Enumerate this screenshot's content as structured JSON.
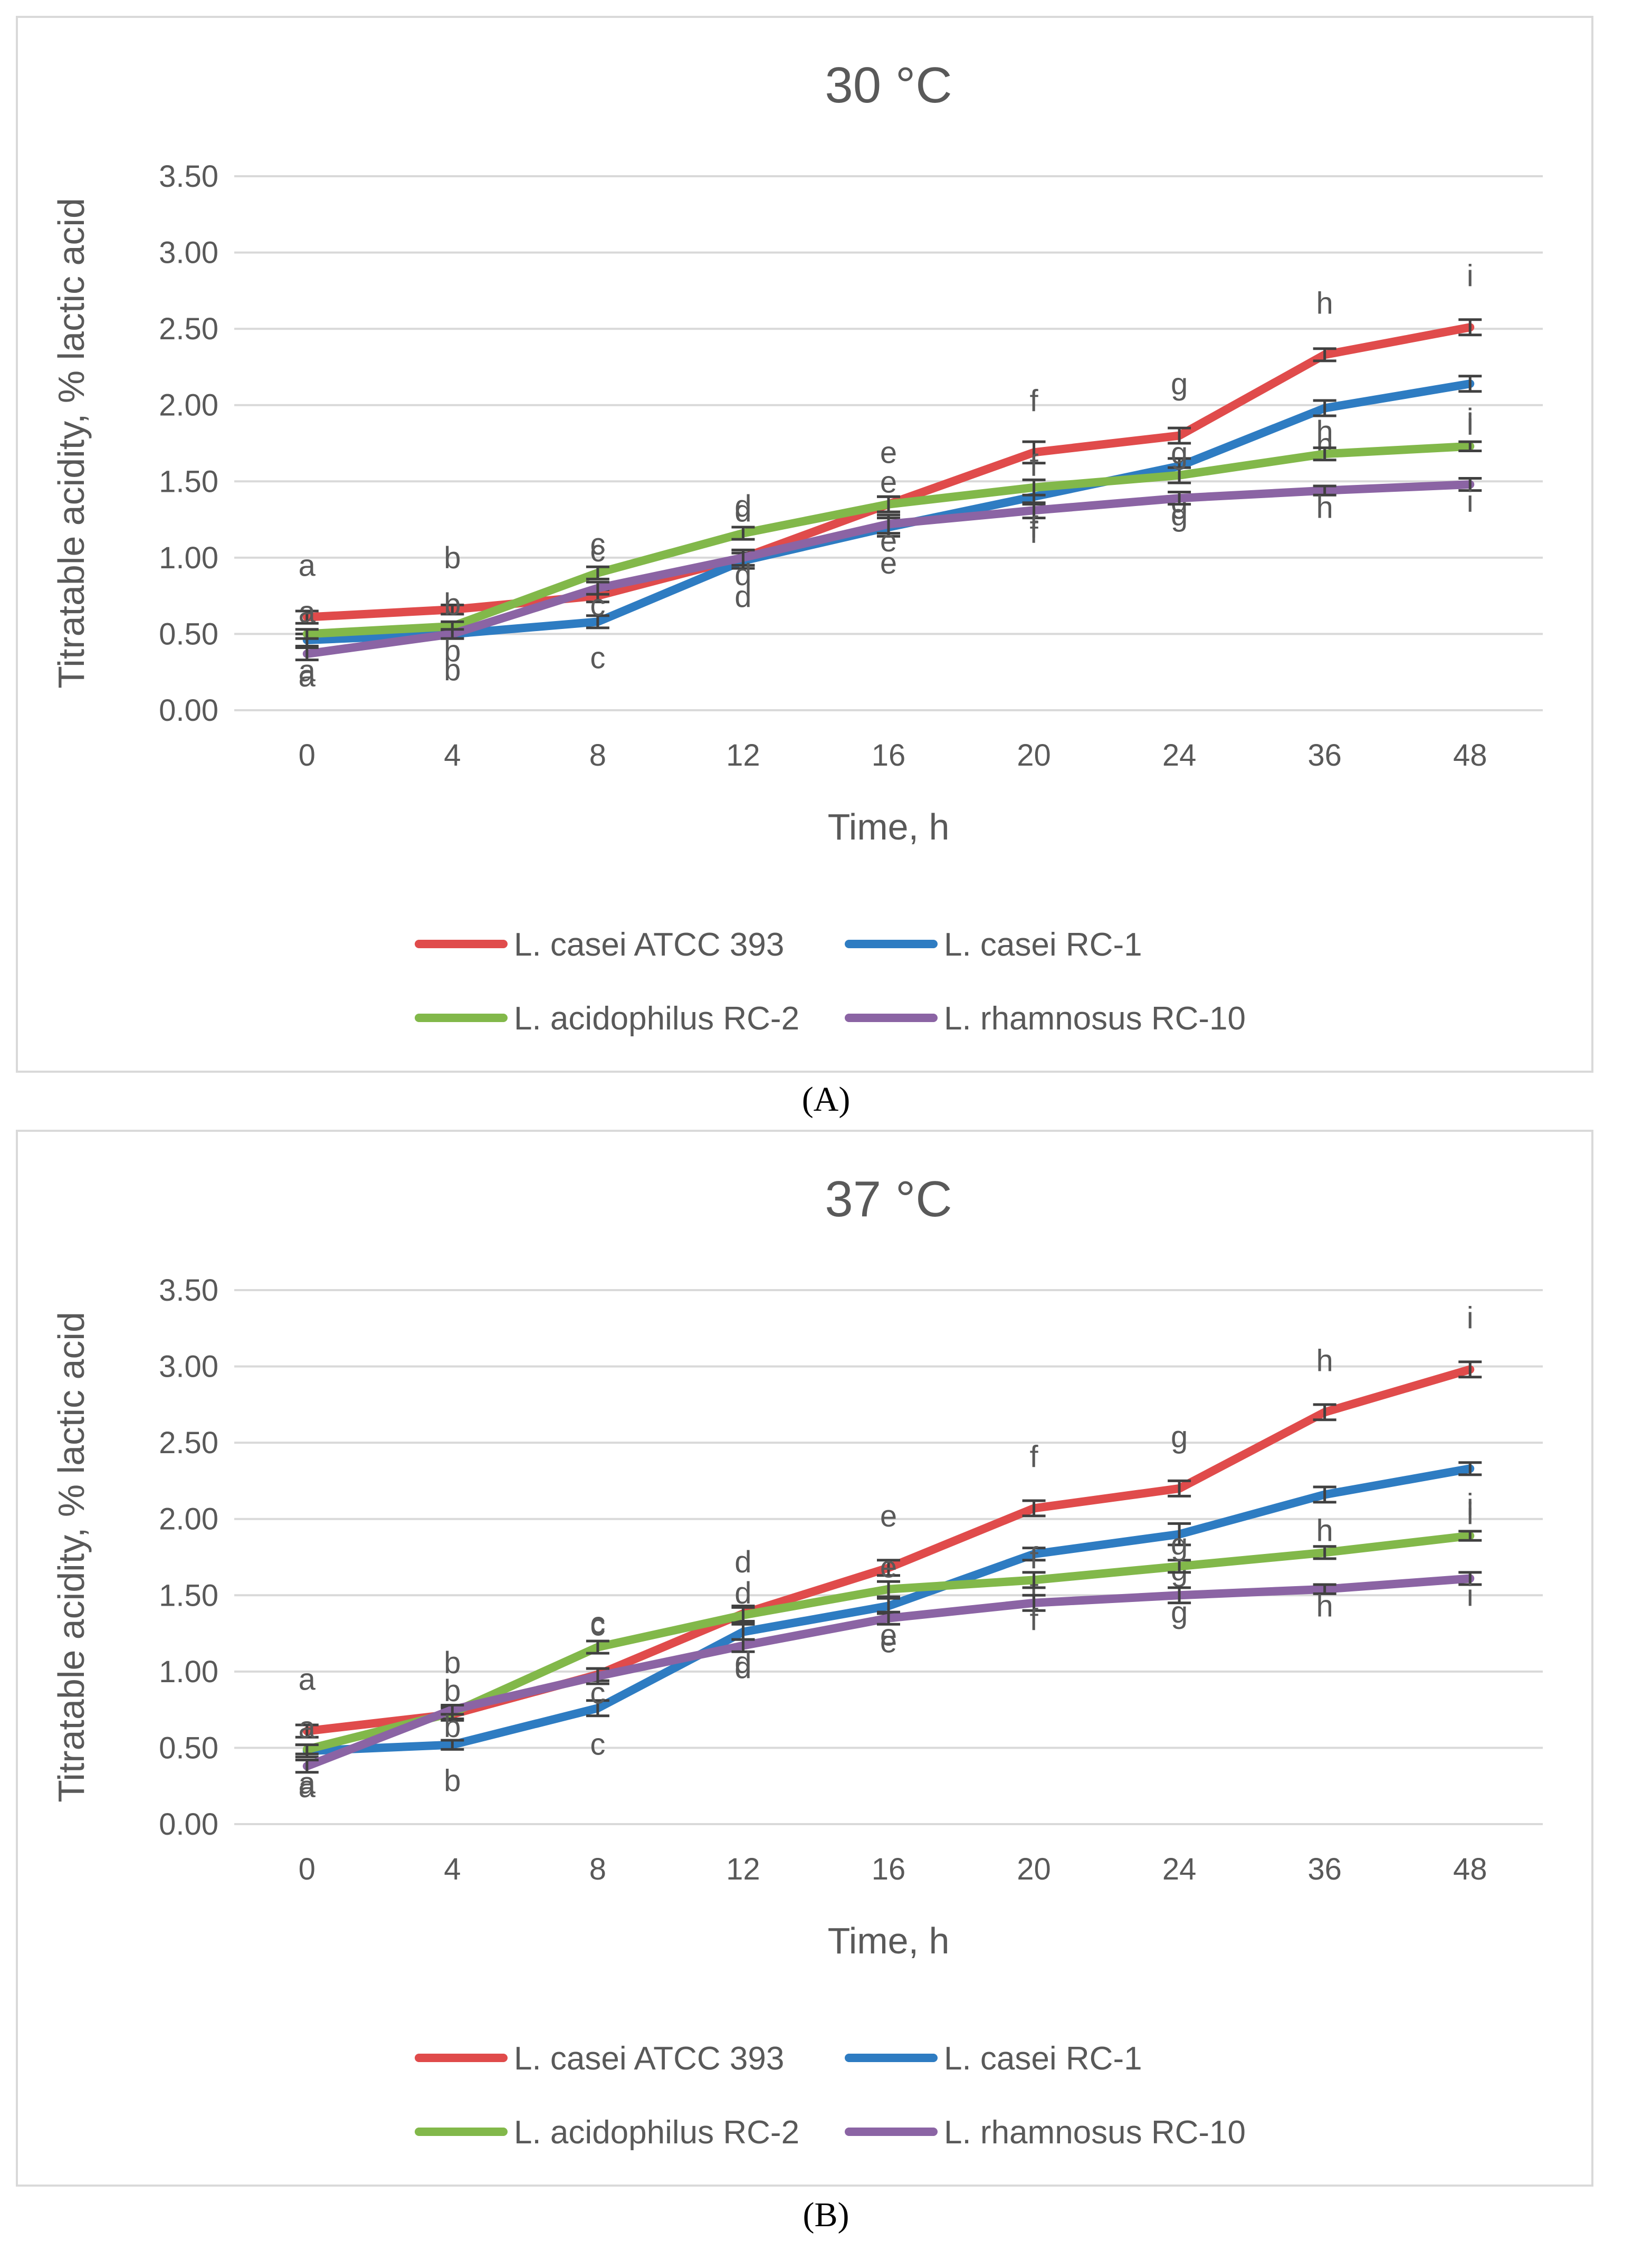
{
  "chart_data": [
    {
      "type": "line",
      "title": "30 °C",
      "xlabel": "Time, h",
      "ylabel": "Titratable acidity, % lactic acid",
      "categories": [
        "0",
        "4",
        "8",
        "12",
        "16",
        "20",
        "24",
        "36",
        "48"
      ],
      "ylim": [
        0,
        3.5
      ],
      "yticks": [
        "0.00",
        "0.50",
        "1.00",
        "1.50",
        "2.00",
        "2.50",
        "3.00",
        "3.50"
      ],
      "grid": true,
      "legend_position": "bottom",
      "series": [
        {
          "name": "L. casei ATCC 393",
          "color": "#e04b4b",
          "values": [
            0.61,
            0.66,
            0.75,
            1.0,
            1.35,
            1.69,
            1.8,
            2.33,
            2.51
          ],
          "errors": [
            0.04,
            0.03,
            0.04,
            0.05,
            0.05,
            0.07,
            0.05,
            0.04,
            0.05
          ],
          "letters": [
            "a",
            "b",
            "c",
            "d",
            "e",
            "f",
            "g",
            "h",
            "i"
          ]
        },
        {
          "name": "L. casei RC-1",
          "color": "#2e7cc2",
          "values": [
            0.46,
            0.5,
            0.58,
            0.98,
            1.2,
            1.4,
            1.6,
            1.98,
            2.14
          ],
          "errors": [
            0.04,
            0.03,
            0.04,
            0.05,
            0.06,
            0.05,
            0.05,
            0.05,
            0.05
          ],
          "letters": [
            "a",
            "b",
            "c",
            "d",
            "e",
            "f",
            "g",
            "h",
            "i"
          ]
        },
        {
          "name": "L. acidophilus RC-2",
          "color": "#82b84a",
          "values": [
            0.5,
            0.55,
            0.9,
            1.16,
            1.35,
            1.46,
            1.54,
            1.68,
            1.73
          ],
          "errors": [
            0.03,
            0.03,
            0.04,
            0.04,
            0.05,
            0.05,
            0.05,
            0.04,
            0.03
          ],
          "letters": [
            "a",
            "b",
            "c",
            "d",
            "e",
            "f",
            "g",
            "h",
            "i"
          ]
        },
        {
          "name": "L. rhamnosus RC-10",
          "color": "#8b64a4",
          "values": [
            0.37,
            0.5,
            0.8,
            1.0,
            1.22,
            1.31,
            1.39,
            1.44,
            1.48
          ],
          "errors": [
            0.04,
            0.03,
            0.04,
            0.05,
            0.06,
            0.05,
            0.04,
            0.03,
            0.04
          ],
          "letters": [
            "a",
            "b",
            "c",
            "d",
            "e",
            "f",
            "g",
            "h",
            "i"
          ]
        }
      ]
    },
    {
      "type": "line",
      "title": "37 °C",
      "xlabel": "Time, h",
      "ylabel": "Titratable acidity, % lactic acid",
      "categories": [
        "0",
        "4",
        "8",
        "12",
        "16",
        "20",
        "24",
        "36",
        "48"
      ],
      "ylim": [
        0,
        3.5
      ],
      "yticks": [
        "0.00",
        "0.50",
        "1.00",
        "1.50",
        "2.00",
        "2.50",
        "3.00",
        "3.50"
      ],
      "grid": true,
      "legend_position": "bottom",
      "series": [
        {
          "name": "L. casei ATCC 393",
          "color": "#e04b4b",
          "values": [
            0.61,
            0.72,
            0.98,
            1.38,
            1.68,
            2.07,
            2.2,
            2.7,
            2.98
          ],
          "errors": [
            0.04,
            0.04,
            0.04,
            0.05,
            0.05,
            0.05,
            0.05,
            0.05,
            0.05
          ],
          "letters": [
            "a",
            "b",
            "c",
            "d",
            "e",
            "f",
            "g",
            "h",
            "i"
          ]
        },
        {
          "name": "L. casei RC-1",
          "color": "#2e7cc2",
          "values": [
            0.48,
            0.52,
            0.76,
            1.26,
            1.43,
            1.77,
            1.9,
            2.16,
            2.33
          ],
          "errors": [
            0.04,
            0.03,
            0.05,
            0.05,
            0.05,
            0.04,
            0.07,
            0.05,
            0.04
          ],
          "letters": [
            "a",
            "b",
            "c",
            "d",
            "e",
            "f",
            "g",
            "h",
            "i"
          ]
        },
        {
          "name": "L. acidophilus RC-2",
          "color": "#82b84a",
          "values": [
            0.49,
            0.73,
            1.16,
            1.37,
            1.54,
            1.6,
            1.69,
            1.78,
            1.89
          ],
          "errors": [
            0.03,
            0.04,
            0.04,
            0.05,
            0.05,
            0.05,
            0.04,
            0.04,
            0.03
          ],
          "letters": [
            "a",
            "b",
            "c",
            "d",
            "e",
            "f",
            "g",
            "h",
            "i"
          ]
        },
        {
          "name": "L. rhamnosus RC-10",
          "color": "#8b64a4",
          "values": [
            0.38,
            0.75,
            0.97,
            1.17,
            1.35,
            1.45,
            1.5,
            1.54,
            1.61
          ],
          "errors": [
            0.04,
            0.03,
            0.05,
            0.04,
            0.04,
            0.05,
            0.05,
            0.03,
            0.04
          ],
          "letters": [
            "a",
            "b",
            "c",
            "d",
            "e",
            "f",
            "g",
            "h",
            "i"
          ]
        }
      ]
    }
  ],
  "captions": [
    "(A)",
    "(B)"
  ]
}
